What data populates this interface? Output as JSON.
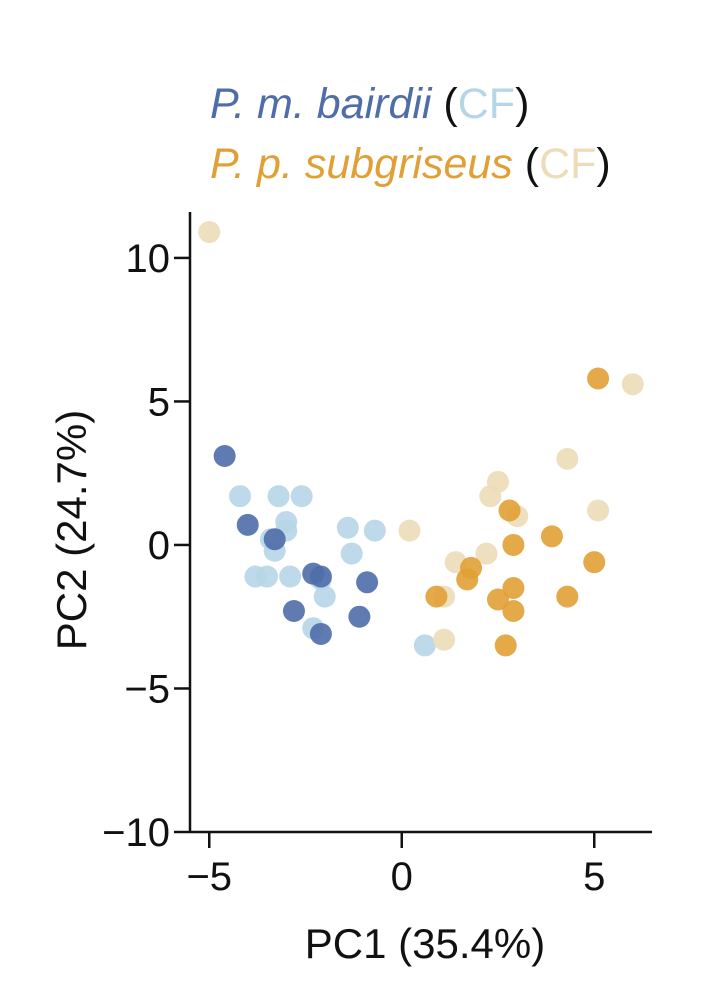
{
  "chart_data": {
    "type": "scatter",
    "xlabel": "PC1 (35.4%)",
    "ylabel": "PC2 (24.7%)",
    "xlim": [
      -5.5,
      6.5
    ],
    "ylim": [
      -10,
      11.6
    ],
    "xticks": [
      -5,
      0,
      5
    ],
    "yticks": [
      -10,
      -5,
      0,
      5,
      10
    ],
    "xtick_labels": [
      "−5",
      "0",
      "5"
    ],
    "ytick_labels": [
      "−10",
      "−5",
      "0",
      "5",
      "10"
    ],
    "grid": false,
    "legend": {
      "placement": "top",
      "entries": [
        {
          "species": "P. m. bairdii",
          "open": "(",
          "cf": "CF",
          "close": ")",
          "color": "#4f6da8",
          "cf_color": "#b6d5e8"
        },
        {
          "species": "P. p. subgriseus",
          "open": "(",
          "cf": "CF",
          "close": ")",
          "color": "#e1a035",
          "cf_color": "#ecdcb8"
        }
      ]
    },
    "series": [
      {
        "name": "P. m. bairdii (CF)",
        "color": "#b6d5e8",
        "points": [
          [
            -4.2,
            1.7
          ],
          [
            -3.2,
            1.7
          ],
          [
            -2.6,
            1.7
          ],
          [
            -3.0,
            0.8
          ],
          [
            -3.0,
            0.5
          ],
          [
            -3.4,
            0.2
          ],
          [
            -3.3,
            -0.2
          ],
          [
            -3.5,
            -1.1
          ],
          [
            -3.8,
            -1.1
          ],
          [
            -2.9,
            -1.1
          ],
          [
            -2.1,
            -1.2
          ],
          [
            -2.0,
            -1.8
          ],
          [
            -2.3,
            -2.9
          ],
          [
            -1.4,
            0.6
          ],
          [
            -0.7,
            0.5
          ],
          [
            -1.3,
            -0.3
          ],
          [
            0.6,
            -3.5
          ]
        ]
      },
      {
        "name": "P. m. bairdii",
        "color": "#4f6da8",
        "points": [
          [
            -4.6,
            3.1
          ],
          [
            -4.0,
            0.7
          ],
          [
            -3.3,
            0.2
          ],
          [
            -2.3,
            -1.0
          ],
          [
            -2.1,
            -1.1
          ],
          [
            -0.9,
            -1.3
          ],
          [
            -2.8,
            -2.3
          ],
          [
            -1.1,
            -2.5
          ],
          [
            -2.1,
            -3.1
          ]
        ]
      },
      {
        "name": "P. p. subgriseus (CF)",
        "color": "#ecdcb8",
        "points": [
          [
            -5.0,
            10.9
          ],
          [
            0.2,
            0.5
          ],
          [
            1.1,
            -1.8
          ],
          [
            1.4,
            -0.6
          ],
          [
            2.2,
            -0.3
          ],
          [
            2.3,
            1.7
          ],
          [
            2.5,
            2.2
          ],
          [
            3.0,
            1.0
          ],
          [
            4.3,
            3.0
          ],
          [
            5.1,
            1.2
          ],
          [
            6.0,
            5.6
          ],
          [
            1.1,
            -3.3
          ]
        ]
      },
      {
        "name": "P. p. subgriseus",
        "color": "#e1a035",
        "points": [
          [
            0.9,
            -1.8
          ],
          [
            1.8,
            -0.8
          ],
          [
            1.7,
            -1.2
          ],
          [
            2.5,
            -1.9
          ],
          [
            2.8,
            1.2
          ],
          [
            2.9,
            0.0
          ],
          [
            2.9,
            -1.5
          ],
          [
            2.9,
            -2.3
          ],
          [
            2.7,
            -3.5
          ],
          [
            3.9,
            0.3
          ],
          [
            4.3,
            -1.8
          ],
          [
            5.0,
            -0.6
          ],
          [
            5.1,
            5.8
          ]
        ]
      }
    ]
  }
}
